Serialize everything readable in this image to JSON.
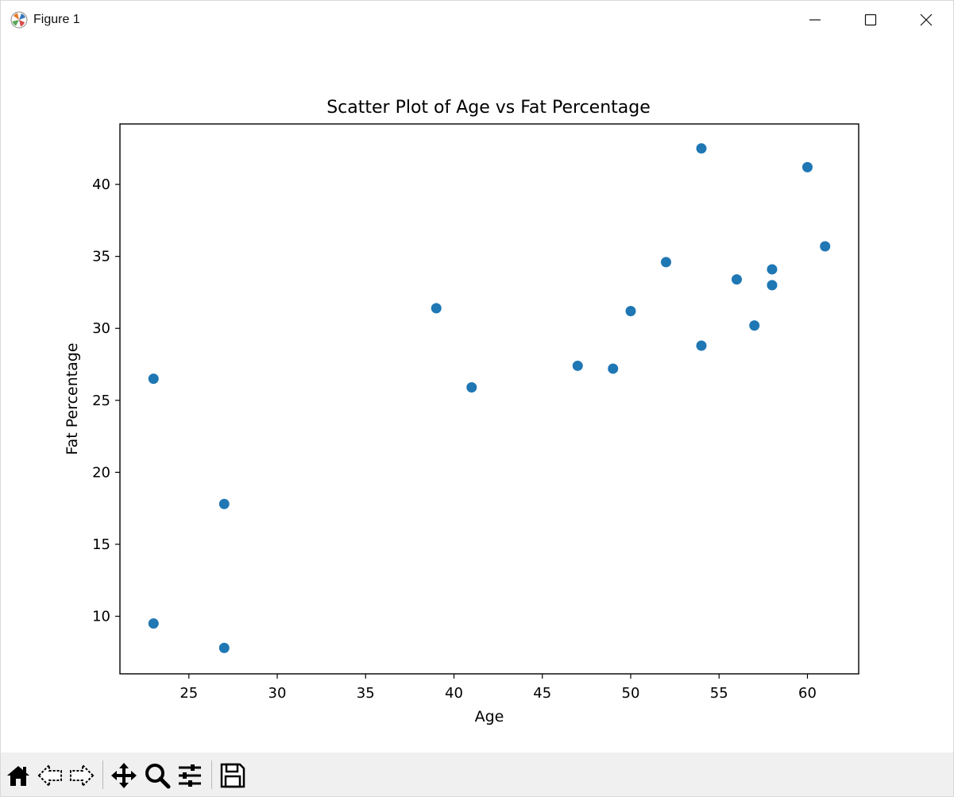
{
  "window": {
    "title": "Figure 1"
  },
  "toolbar": {
    "tools": [
      "home-icon",
      "back-arrow-icon",
      "forward-arrow-icon",
      "pan-icon",
      "zoom-icon",
      "configure-subplots-icon",
      "save-icon"
    ]
  },
  "colors": {
    "marker": "#1f77b4",
    "axes": "#000000",
    "toolbar_bg": "#f0f0f0"
  },
  "chart_data": {
    "type": "scatter",
    "title": "Scatter Plot of Age vs Fat Percentage",
    "xlabel": "Age",
    "ylabel": "Fat Percentage",
    "xlim": [
      21.1,
      62.9
    ],
    "ylim": [
      6.0,
      44.2
    ],
    "xticks": [
      25,
      30,
      35,
      40,
      45,
      50,
      55,
      60
    ],
    "yticks": [
      10,
      15,
      20,
      25,
      30,
      35,
      40
    ],
    "grid": false,
    "points": [
      {
        "x": 23,
        "y": 9.5
      },
      {
        "x": 23,
        "y": 26.5
      },
      {
        "x": 27,
        "y": 7.8
      },
      {
        "x": 27,
        "y": 17.8
      },
      {
        "x": 39,
        "y": 31.4
      },
      {
        "x": 41,
        "y": 25.9
      },
      {
        "x": 47,
        "y": 27.4
      },
      {
        "x": 49,
        "y": 27.2
      },
      {
        "x": 50,
        "y": 31.2
      },
      {
        "x": 52,
        "y": 34.6
      },
      {
        "x": 54,
        "y": 42.5
      },
      {
        "x": 54,
        "y": 28.8
      },
      {
        "x": 56,
        "y": 33.4
      },
      {
        "x": 57,
        "y": 30.2
      },
      {
        "x": 58,
        "y": 33.0
      },
      {
        "x": 58,
        "y": 34.1
      },
      {
        "x": 60,
        "y": 41.2
      },
      {
        "x": 61,
        "y": 35.7
      }
    ]
  }
}
